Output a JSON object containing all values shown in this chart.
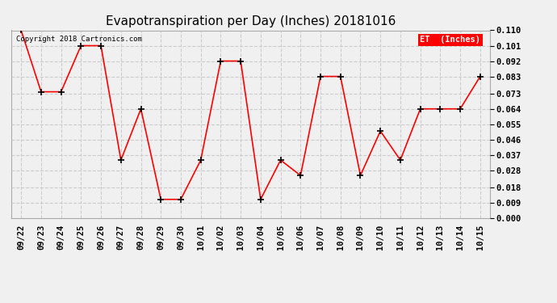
{
  "title": "Evapotranspiration per Day (Inches) 20181016",
  "copyright_text": "Copyright 2018 Cartronics.com",
  "legend_label": "ET  (Inches)",
  "x_labels": [
    "09/22",
    "09/23",
    "09/24",
    "09/25",
    "09/26",
    "09/27",
    "09/28",
    "09/29",
    "09/30",
    "10/01",
    "10/02",
    "10/03",
    "10/04",
    "10/05",
    "10/06",
    "10/07",
    "10/08",
    "10/09",
    "10/10",
    "10/11",
    "10/12",
    "10/13",
    "10/14",
    "10/15"
  ],
  "y_values": [
    0.11,
    0.074,
    0.074,
    0.101,
    0.101,
    0.034,
    0.064,
    0.011,
    0.011,
    0.034,
    0.092,
    0.092,
    0.011,
    0.034,
    0.025,
    0.083,
    0.083,
    0.025,
    0.051,
    0.034,
    0.064,
    0.064,
    0.064,
    0.083
  ],
  "line_color": "red",
  "marker": "+",
  "marker_color": "black",
  "marker_size": 6,
  "marker_linewidth": 1.2,
  "line_width": 1.2,
  "ylim": [
    0.0,
    0.11
  ],
  "yticks": [
    0.0,
    0.009,
    0.018,
    0.028,
    0.037,
    0.046,
    0.055,
    0.064,
    0.073,
    0.083,
    0.092,
    0.101,
    0.11
  ],
  "grid_color": "#cccccc",
  "grid_style": "--",
  "background_color": "#f0f0f0",
  "title_fontsize": 11,
  "tick_fontsize": 7.5,
  "legend_bg": "#ff0000",
  "legend_fg": "#ffffff"
}
